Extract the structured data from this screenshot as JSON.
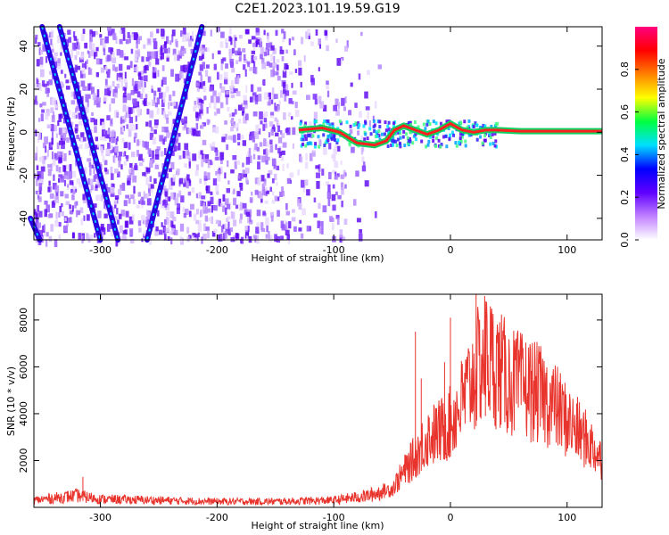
{
  "title": "C2E1.2023.101.19.59.G19",
  "chart_data": [
    {
      "type": "heatmap",
      "xlabel": "Height of straight line (km)",
      "ylabel": "Frequency (Hz)",
      "xlim": [
        -357,
        130
      ],
      "ylim": [
        -50,
        49
      ],
      "xticks": [
        -300,
        -200,
        -100,
        0,
        100
      ],
      "xtick_labels": [
        "-300",
        "-200",
        "-100",
        "0",
        "100"
      ],
      "yticks": [
        -40,
        -20,
        0,
        20,
        40
      ],
      "ytick_labels": [
        "-40",
        "-20",
        "0",
        "20",
        "40"
      ],
      "colorbar": {
        "label": "Normalized spectral amplitude",
        "range": [
          0,
          1
        ],
        "ticks": [
          0.0,
          0.2,
          0.4,
          0.6,
          0.8
        ],
        "tick_labels": [
          "0.0",
          "0.2",
          "0.4",
          "0.6",
          "0.8"
        ],
        "colors": [
          "#ffffff",
          "#c080ff",
          "#6000ff",
          "#0000ff",
          "#00e0ff",
          "#00ff40",
          "#ffff00",
          "#ff8000",
          "#ff0000",
          "#ff0080"
        ]
      },
      "ridges": [
        {
          "name": "ridge-1",
          "points": [
            [
              -350,
              49
            ],
            [
              -300,
              -50
            ]
          ]
        },
        {
          "name": "ridge-2",
          "points": [
            [
              -335,
              49
            ],
            [
              -285,
              -50
            ]
          ]
        },
        {
          "name": "ridge-3",
          "points": [
            [
              -213,
              49
            ],
            [
              -260,
              -50
            ]
          ]
        },
        {
          "name": "ridge-4",
          "points": [
            [
              -360,
              -40
            ],
            [
              -352,
              -50
            ]
          ]
        }
      ],
      "center_line": [
        [
          -130,
          1
        ],
        [
          -110,
          2
        ],
        [
          -95,
          0
        ],
        [
          -80,
          -5
        ],
        [
          -65,
          -6
        ],
        [
          -55,
          -4
        ],
        [
          -48,
          1
        ],
        [
          -40,
          3
        ],
        [
          -30,
          1
        ],
        [
          -20,
          -1
        ],
        [
          -10,
          1
        ],
        [
          0,
          4
        ],
        [
          10,
          1
        ],
        [
          20,
          0
        ],
        [
          30,
          1
        ],
        [
          40,
          1
        ],
        [
          60,
          0.5
        ],
        [
          130,
          0.5
        ]
      ]
    },
    {
      "type": "line",
      "xlabel": "Height of straight line (km)",
      "ylabel": "SNR (10 * v/v)",
      "xlim": [
        -357,
        130
      ],
      "ylim": [
        0,
        9100
      ],
      "xticks": [
        -300,
        -200,
        -100,
        0,
        100
      ],
      "xtick_labels": [
        "-300",
        "-200",
        "-100",
        "0",
        "100"
      ],
      "yticks": [
        2000,
        4000,
        6000,
        8000
      ],
      "ytick_labels": [
        "2000",
        "4000",
        "6000",
        "8000"
      ],
      "color": "#e8342c",
      "envelope": [
        {
          "x": -357,
          "y": 300
        },
        {
          "x": -320,
          "y": 500
        },
        {
          "x": -300,
          "y": 350
        },
        {
          "x": -250,
          "y": 300
        },
        {
          "x": -200,
          "y": 250
        },
        {
          "x": -150,
          "y": 250
        },
        {
          "x": -100,
          "y": 300
        },
        {
          "x": -70,
          "y": 500
        },
        {
          "x": -50,
          "y": 800
        },
        {
          "x": -40,
          "y": 1500
        },
        {
          "x": -30,
          "y": 2200
        },
        {
          "x": -20,
          "y": 3000
        },
        {
          "x": -10,
          "y": 3200
        },
        {
          "x": 0,
          "y": 3600
        },
        {
          "x": 10,
          "y": 4500
        },
        {
          "x": 20,
          "y": 5600
        },
        {
          "x": 30,
          "y": 6500
        },
        {
          "x": 40,
          "y": 6000
        },
        {
          "x": 50,
          "y": 5400
        },
        {
          "x": 60,
          "y": 5200
        },
        {
          "x": 70,
          "y": 5000
        },
        {
          "x": 80,
          "y": 4700
        },
        {
          "x": 90,
          "y": 4300
        },
        {
          "x": 100,
          "y": 3700
        },
        {
          "x": 110,
          "y": 3200
        },
        {
          "x": 120,
          "y": 2700
        },
        {
          "x": 130,
          "y": 2000
        }
      ],
      "spikes": [
        {
          "x": -315,
          "y": 1300
        },
        {
          "x": -30,
          "y": 7500
        },
        {
          "x": -25,
          "y": 5500
        },
        {
          "x": -5,
          "y": 6200
        },
        {
          "x": 0,
          "y": 8100
        },
        {
          "x": 22,
          "y": 9100
        },
        {
          "x": 30,
          "y": 8800
        }
      ]
    }
  ]
}
